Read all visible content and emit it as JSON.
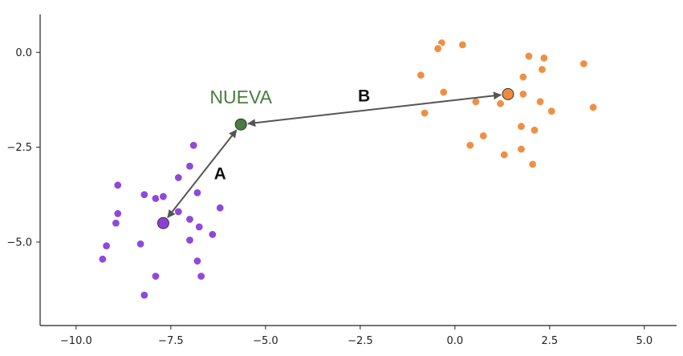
{
  "chart_data": {
    "type": "scatter",
    "title": "",
    "xlabel": "",
    "ylabel": "",
    "xlim": [
      -10.95,
      5.85
    ],
    "ylim": [
      -7.2,
      1.0
    ],
    "grid": false,
    "xticks": [
      -10.0,
      -7.5,
      -5.0,
      -2.5,
      0.0,
      2.5,
      5.0
    ],
    "xtick_labels": [
      "−10.0",
      "−7.5",
      "−5.0",
      "−2.5",
      "0.0",
      "2.5",
      "5.0"
    ],
    "yticks": [
      0.0,
      -2.5,
      -5.0
    ],
    "ytick_labels": [
      "0.0",
      "−2.5",
      "−5.0"
    ],
    "series": [
      {
        "color": "#8b3fd9",
        "points": [
          [
            -6.9,
            -2.45
          ],
          [
            -7.0,
            -3.0
          ],
          [
            -7.3,
            -3.3
          ],
          [
            -8.9,
            -3.5
          ],
          [
            -8.2,
            -3.75
          ],
          [
            -7.9,
            -3.85
          ],
          [
            -7.7,
            -3.8
          ],
          [
            -6.8,
            -3.7
          ],
          [
            -8.9,
            -4.25
          ],
          [
            -7.3,
            -4.2
          ],
          [
            -7.0,
            -4.4
          ],
          [
            -8.95,
            -4.5
          ],
          [
            -6.2,
            -4.1
          ],
          [
            -6.75,
            -4.6
          ],
          [
            -6.4,
            -4.8
          ],
          [
            -7.0,
            -4.95
          ],
          [
            -8.3,
            -5.05
          ],
          [
            -9.2,
            -5.1
          ],
          [
            -9.3,
            -5.45
          ],
          [
            -6.8,
            -5.5
          ],
          [
            -7.9,
            -5.9
          ],
          [
            -6.7,
            -5.9
          ],
          [
            -8.2,
            -6.4
          ]
        ]
      },
      {
        "color": "#ef8a3a",
        "points": [
          [
            -0.35,
            0.25
          ],
          [
            0.2,
            0.2
          ],
          [
            -0.45,
            0.1
          ],
          [
            1.95,
            -0.1
          ],
          [
            2.35,
            -0.15
          ],
          [
            3.4,
            -0.3
          ],
          [
            2.3,
            -0.45
          ],
          [
            -0.9,
            -0.6
          ],
          [
            1.8,
            -0.65
          ],
          [
            -0.3,
            -1.05
          ],
          [
            1.8,
            -1.1
          ],
          [
            0.55,
            -1.3
          ],
          [
            1.2,
            -1.35
          ],
          [
            2.25,
            -1.3
          ],
          [
            3.65,
            -1.45
          ],
          [
            2.55,
            -1.55
          ],
          [
            -0.8,
            -1.6
          ],
          [
            1.75,
            -1.95
          ],
          [
            2.1,
            -2.05
          ],
          [
            0.75,
            -2.2
          ],
          [
            0.4,
            -2.45
          ],
          [
            1.75,
            -2.55
          ],
          [
            1.3,
            -2.7
          ],
          [
            2.05,
            -2.95
          ]
        ]
      }
    ],
    "centroids": [
      {
        "color": "#8b3fd9",
        "point": [
          -7.7,
          -4.5
        ]
      },
      {
        "color": "#ef8a3a",
        "point": [
          1.4,
          -1.1
        ]
      }
    ],
    "new_point": {
      "label": "NUEVA",
      "point": [
        -5.65,
        -1.9
      ],
      "color": "#4a7c3f"
    },
    "arrows": [
      {
        "label": "A",
        "from": [
          -7.7,
          -4.5
        ],
        "to": [
          -5.65,
          -1.9
        ],
        "label_at": [
          -6.2,
          -3.2
        ]
      },
      {
        "label": "B",
        "from": [
          1.4,
          -1.1
        ],
        "to": [
          -5.65,
          -1.9
        ],
        "label_at": [
          -2.4,
          -1.15
        ]
      }
    ]
  }
}
